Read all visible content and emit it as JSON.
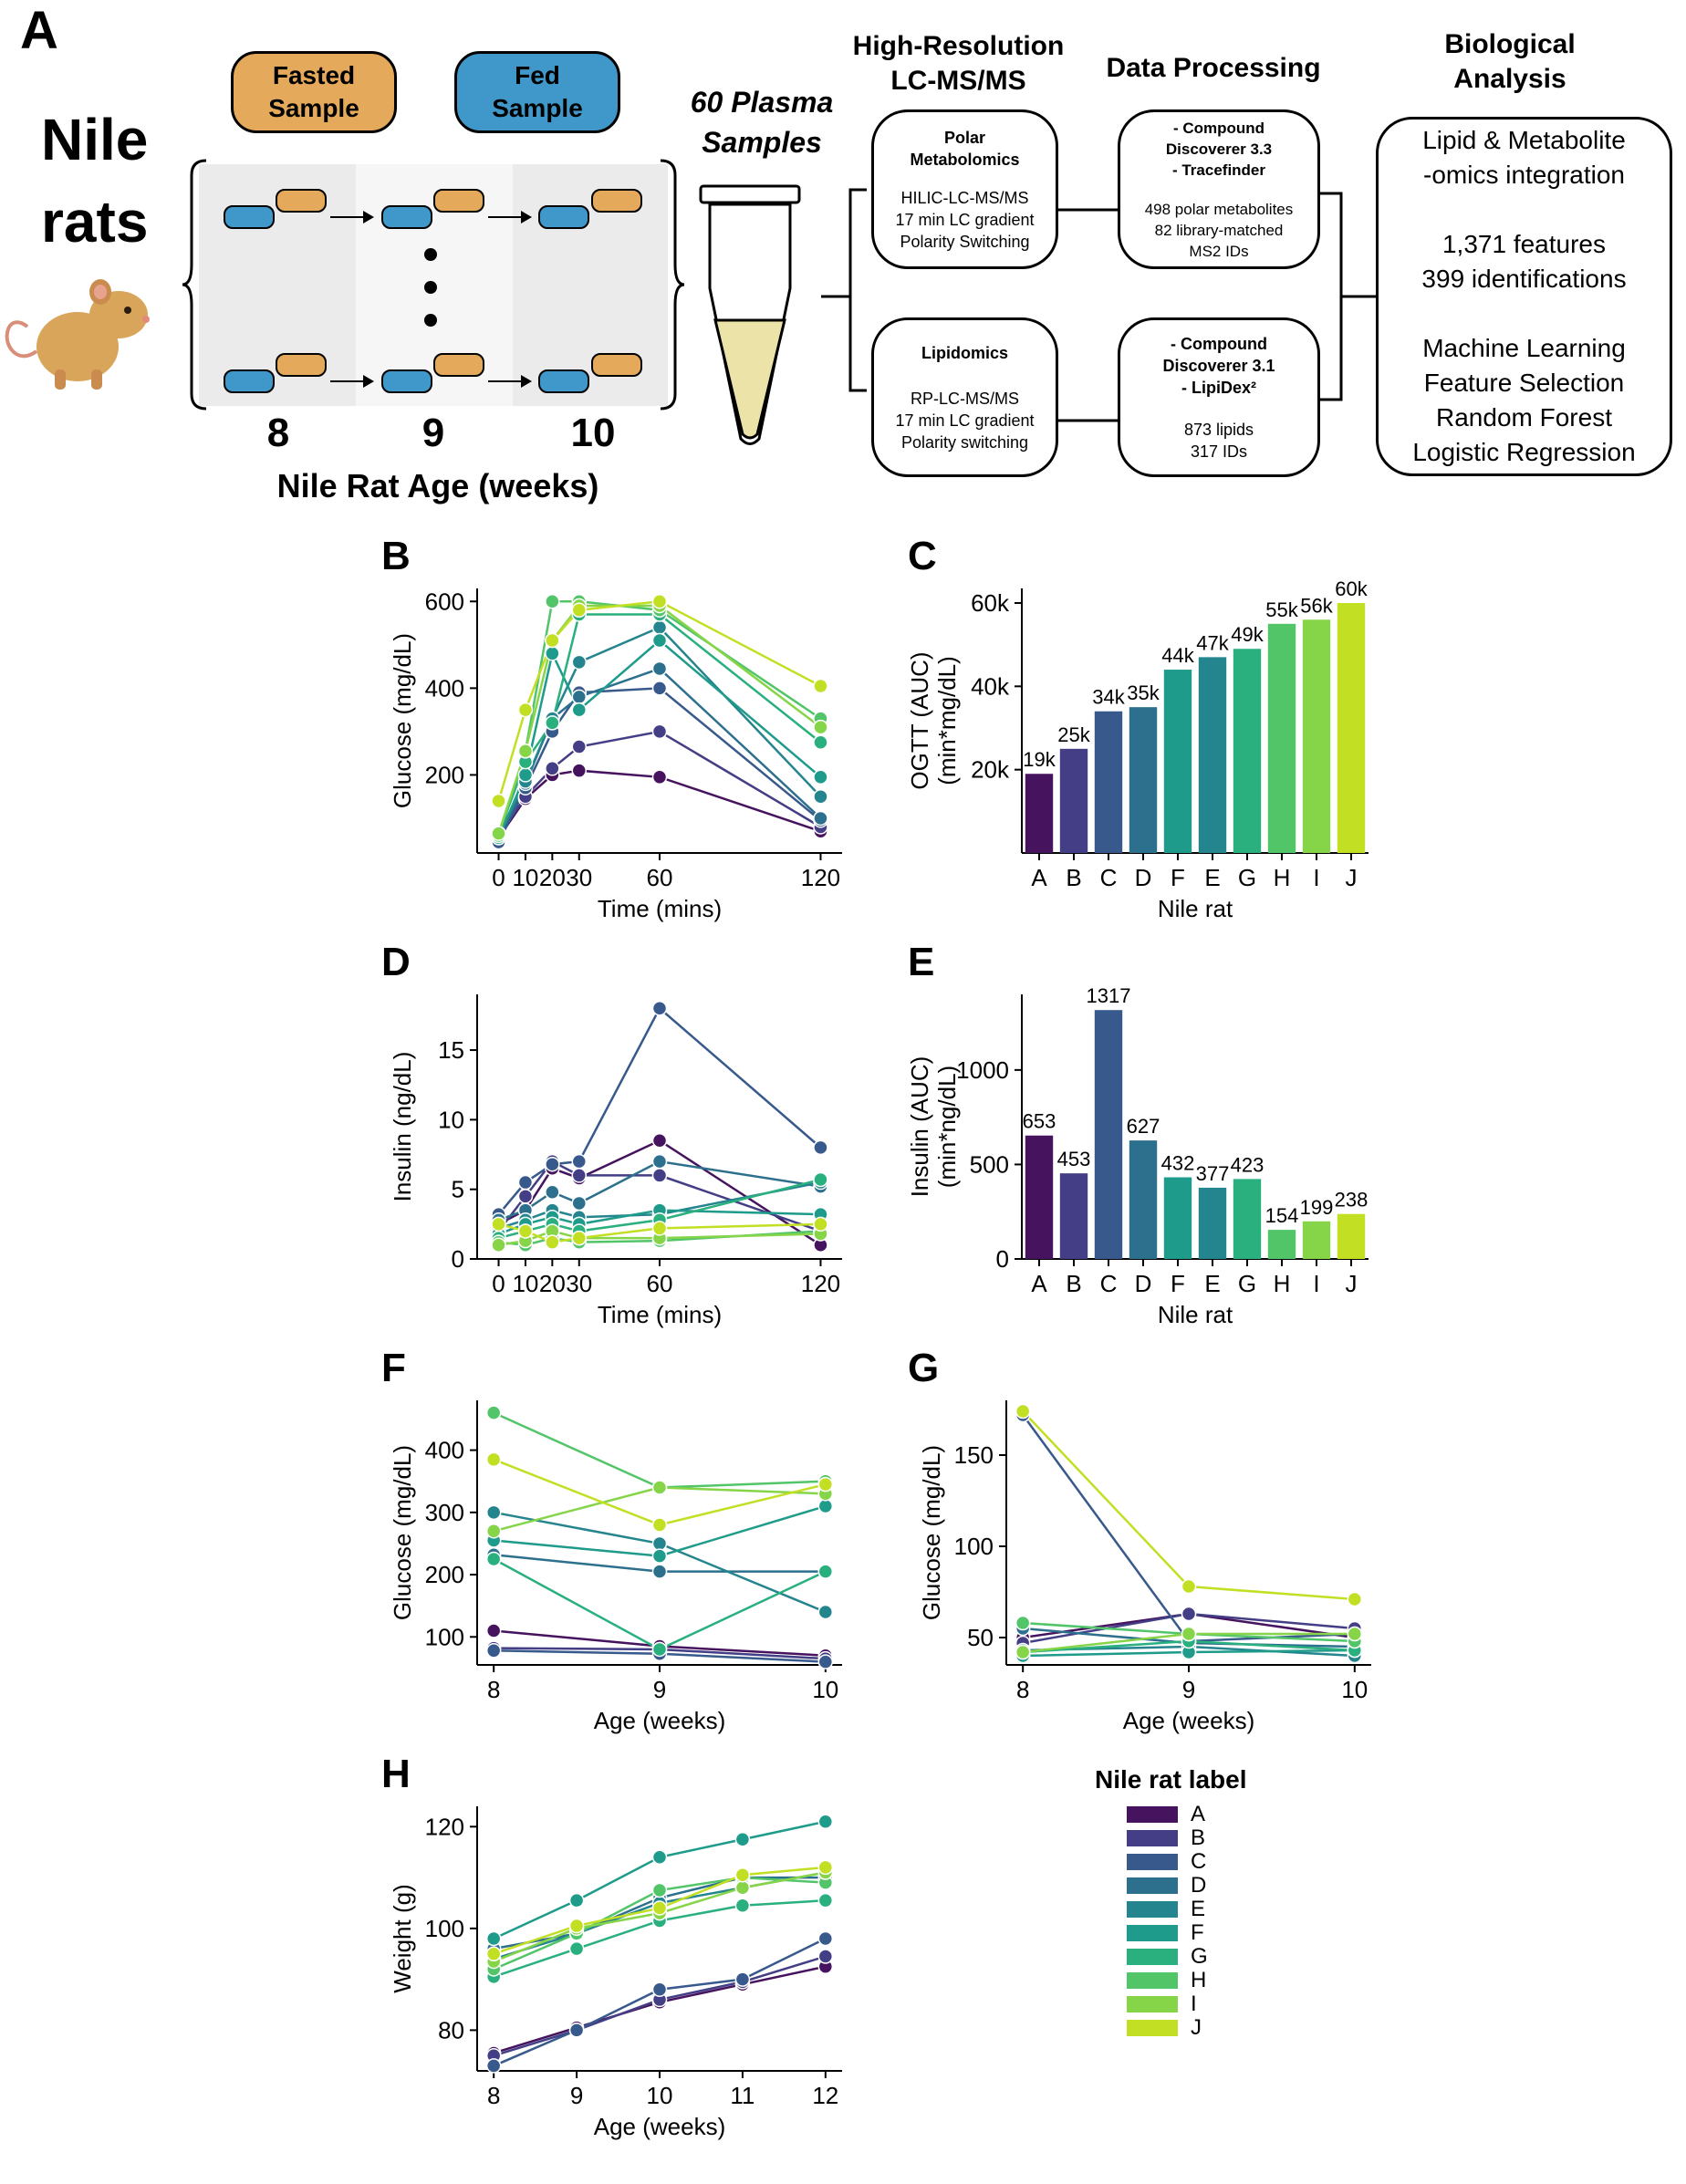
{
  "panel_a": {
    "letter": "A",
    "animal_line1": "Nile",
    "animal_line2": "rats",
    "fasted_line1": "Fasted",
    "fasted_line2": "Sample",
    "fed_line1": "Fed",
    "fed_line2": "Sample",
    "age_ticks": [
      "8",
      "9",
      "10"
    ],
    "age_axis": "Nile Rat Age (weeks)",
    "plasma_line1": "60 Plasma",
    "plasma_line2": "Samples",
    "hr_line1": "High-Resolution",
    "hr_line2": "LC-MS/MS",
    "dp_title": "Data Processing",
    "bio_line1": "Biological",
    "bio_line2": "Analysis",
    "polar_box": {
      "title1": "Polar",
      "title2": "Metabolomics",
      "l1": "HILIC-LC-MS/MS",
      "l2": "17 min LC gradient",
      "l3": "Polarity Switching"
    },
    "lipid_box": {
      "title": "Lipidomics",
      "l1": "RP-LC-MS/MS",
      "l2": "17 min LC gradient",
      "l3": "Polarity switching"
    },
    "cd33_box": {
      "l1": "- Compound",
      "l2": "Discoverer 3.3",
      "l3": "- Tracefinder",
      "l4": "498 polar metabolites",
      "l5": "82 library-matched",
      "l6": "MS2 IDs"
    },
    "cd31_box": {
      "l1": "- Compound",
      "l2": "Discoverer 3.1",
      "l3": "- LipiDex²",
      "l4": "873 lipids",
      "l5": "317 IDs"
    },
    "bio_box": {
      "l1": "Lipid & Metabolite",
      "l2": "-omics integration",
      "l3": "1,371 features",
      "l4": "399 identifications",
      "l5": "Machine Learning",
      "l6": "Feature Selection",
      "l7": "Random Forest",
      "l8": "Logistic Regression"
    }
  },
  "colors": {
    "A": "#46135f",
    "B": "#433e85",
    "C": "#38598c",
    "D": "#2d708e",
    "E": "#25858e",
    "F": "#1e9b8a",
    "G": "#2ab07f",
    "H": "#52c569",
    "I": "#86d549",
    "J": "#c2df23"
  },
  "legend": {
    "title": "Nile rat label",
    "labels": [
      "A",
      "B",
      "C",
      "D",
      "E",
      "F",
      "G",
      "H",
      "I",
      "J"
    ]
  },
  "chart_data": [
    {
      "panel": "B",
      "type": "line",
      "xlabel": "Time (mins)",
      "ylabel": "Glucose (mg/dL)",
      "x": [
        0,
        10,
        20,
        30,
        60,
        120
      ],
      "x_tick_labels": [
        "0",
        "10",
        "20",
        "30",
        "60",
        "120"
      ],
      "y_ticks": [
        200,
        400,
        600
      ],
      "xlim": [
        -8,
        128
      ],
      "ylim": [
        20,
        630
      ],
      "series": [
        {
          "name": "A",
          "values": [
            55,
            145,
            200,
            210,
            195,
            70
          ]
        },
        {
          "name": "B",
          "values": [
            60,
            150,
            215,
            265,
            300,
            80
          ]
        },
        {
          "name": "C",
          "values": [
            45,
            170,
            300,
            390,
            400,
            95
          ]
        },
        {
          "name": "D",
          "values": [
            55,
            180,
            330,
            380,
            445,
            100
          ]
        },
        {
          "name": "E",
          "values": [
            65,
            185,
            330,
            460,
            540,
            150
          ]
        },
        {
          "name": "F",
          "values": [
            55,
            200,
            480,
            350,
            510,
            195
          ]
        },
        {
          "name": "G",
          "values": [
            65,
            230,
            320,
            570,
            570,
            275
          ]
        },
        {
          "name": "H",
          "values": [
            60,
            255,
            600,
            600,
            580,
            330
          ]
        },
        {
          "name": "I",
          "values": [
            65,
            255,
            510,
            590,
            590,
            310
          ]
        },
        {
          "name": "J",
          "values": [
            140,
            350,
            510,
            580,
            600,
            405
          ]
        }
      ]
    },
    {
      "panel": "C",
      "type": "bar",
      "xlabel": "Nile rat",
      "ylabel_line1": "OGTT (AUC)",
      "ylabel_line2": "(min*mg/dL)",
      "categories": [
        "A",
        "B",
        "C",
        "D",
        "F",
        "E",
        "G",
        "H",
        "I",
        "J"
      ],
      "values": [
        19000,
        25000,
        34000,
        35000,
        44000,
        47000,
        49000,
        55000,
        56000,
        60000
      ],
      "data_labels": [
        "19k",
        "25k",
        "34k",
        "35k",
        "44k",
        "47k",
        "49k",
        "55k",
        "56k",
        "60k"
      ],
      "y_ticks": [
        20000,
        40000,
        60000
      ],
      "y_tick_labels": [
        "20k",
        "40k",
        "60k"
      ],
      "ylim": [
        0,
        63500
      ]
    },
    {
      "panel": "D",
      "type": "line",
      "xlabel": "Time (mins)",
      "ylabel": "Insulin (ng/dL)",
      "x": [
        0,
        10,
        20,
        30,
        60,
        120
      ],
      "x_tick_labels": [
        "0",
        "10",
        "20",
        "30",
        "60",
        "120"
      ],
      "y_ticks": [
        0,
        5,
        10,
        15
      ],
      "xlim": [
        -8,
        128
      ],
      "ylim": [
        0,
        19
      ],
      "series": [
        {
          "name": "A",
          "values": [
            2.5,
            3.5,
            6.5,
            5.8,
            8.5,
            1.0
          ]
        },
        {
          "name": "B",
          "values": [
            2.0,
            4.5,
            7.0,
            6.0,
            6.0,
            2.0
          ]
        },
        {
          "name": "C",
          "values": [
            3.2,
            5.5,
            6.8,
            7.0,
            18.0,
            8.0
          ]
        },
        {
          "name": "D",
          "values": [
            2.8,
            3.5,
            4.8,
            4.0,
            7.0,
            5.2
          ]
        },
        {
          "name": "E",
          "values": [
            2.2,
            2.8,
            3.5,
            3.0,
            3.2,
            5.5
          ]
        },
        {
          "name": "F",
          "values": [
            1.8,
            2.5,
            3.0,
            2.5,
            3.5,
            3.2
          ]
        },
        {
          "name": "G",
          "values": [
            1.5,
            2.0,
            2.5,
            2.0,
            2.8,
            5.7
          ]
        },
        {
          "name": "H",
          "values": [
            1.2,
            1.0,
            1.5,
            1.2,
            1.3,
            2.0
          ]
        },
        {
          "name": "I",
          "values": [
            1.0,
            1.3,
            2.0,
            1.5,
            1.5,
            1.8
          ]
        },
        {
          "name": "J",
          "values": [
            2.5,
            2.0,
            1.2,
            1.5,
            2.2,
            2.5
          ]
        }
      ]
    },
    {
      "panel": "E",
      "type": "bar",
      "xlabel": "Nile rat",
      "ylabel_line1": "Insulin (AUC)",
      "ylabel_line2": "(min*ng/dL)",
      "categories": [
        "A",
        "B",
        "C",
        "D",
        "F",
        "E",
        "G",
        "H",
        "I",
        "J"
      ],
      "values": [
        653,
        453,
        1317,
        627,
        432,
        377,
        423,
        154,
        199,
        238
      ],
      "data_labels": [
        "653",
        "453",
        "1317",
        "627",
        "432",
        "377",
        "423",
        "154",
        "199",
        "238"
      ],
      "y_ticks": [
        0,
        500,
        1000
      ],
      "y_tick_labels": [
        "0",
        "500",
        "1000"
      ],
      "ylim": [
        0,
        1400
      ]
    },
    {
      "panel": "F",
      "type": "line",
      "xlabel": "Age (weeks)",
      "ylabel": "Glucose (mg/dL)",
      "x": [
        8,
        9,
        10
      ],
      "x_tick_labels": [
        "8",
        "9",
        "10"
      ],
      "y_ticks": [
        100,
        200,
        300,
        400
      ],
      "xlim": [
        7.9,
        10.1
      ],
      "ylim": [
        55,
        480
      ],
      "series": [
        {
          "name": "A",
          "values": [
            110,
            85,
            70
          ]
        },
        {
          "name": "B",
          "values": [
            82,
            80,
            65
          ]
        },
        {
          "name": "C",
          "values": [
            78,
            73,
            60
          ]
        },
        {
          "name": "D",
          "values": [
            232,
            205,
            205
          ]
        },
        {
          "name": "E",
          "values": [
            300,
            250,
            140
          ]
        },
        {
          "name": "F",
          "values": [
            255,
            230,
            310
          ]
        },
        {
          "name": "G",
          "values": [
            225,
            80,
            205
          ]
        },
        {
          "name": "H",
          "values": [
            460,
            340,
            350
          ]
        },
        {
          "name": "I",
          "values": [
            270,
            340,
            330
          ]
        },
        {
          "name": "J",
          "values": [
            385,
            280,
            345
          ]
        }
      ]
    },
    {
      "panel": "G",
      "type": "line",
      "xlabel": "Age (weeks)",
      "ylabel": "Glucose (mg/dL)",
      "x": [
        8,
        9,
        10
      ],
      "x_tick_labels": [
        "8",
        "9",
        "10"
      ],
      "y_ticks": [
        50,
        100,
        150
      ],
      "xlim": [
        7.9,
        10.1
      ],
      "ylim": [
        35,
        180
      ],
      "series": [
        {
          "name": "A",
          "values": [
            50,
            63,
            50
          ]
        },
        {
          "name": "B",
          "values": [
            47,
            63,
            55
          ]
        },
        {
          "name": "C",
          "values": [
            172,
            48,
            52
          ]
        },
        {
          "name": "D",
          "values": [
            55,
            47,
            45
          ]
        },
        {
          "name": "E",
          "values": [
            43,
            45,
            40
          ]
        },
        {
          "name": "F",
          "values": [
            40,
            42,
            43
          ]
        },
        {
          "name": "G",
          "values": [
            42,
            48,
            43
          ]
        },
        {
          "name": "H",
          "values": [
            58,
            52,
            48
          ]
        },
        {
          "name": "I",
          "values": [
            42,
            52,
            52
          ]
        },
        {
          "name": "J",
          "values": [
            174,
            78,
            71
          ]
        }
      ]
    },
    {
      "panel": "H",
      "type": "line",
      "xlabel": "Age (weeks)",
      "ylabel": "Weight (g)",
      "x": [
        8,
        9,
        10,
        11,
        12
      ],
      "x_tick_labels": [
        "8",
        "9",
        "10",
        "11",
        "12"
      ],
      "y_ticks": [
        80,
        100,
        120
      ],
      "xlim": [
        7.8,
        12.2
      ],
      "ylim": [
        72,
        124
      ],
      "series": [
        {
          "name": "A",
          "values": [
            75.5,
            80.5,
            85.5,
            89,
            92.5
          ]
        },
        {
          "name": "B",
          "values": [
            75,
            80,
            86,
            89.5,
            94.5
          ]
        },
        {
          "name": "C",
          "values": [
            73,
            80,
            88,
            90,
            98
          ]
        },
        {
          "name": "D",
          "values": [
            96,
            99,
            106,
            110,
            110
          ]
        },
        {
          "name": "E",
          "values": [
            94,
            99,
            105,
            108,
            111
          ]
        },
        {
          "name": "F",
          "values": [
            98,
            105.5,
            114,
            117.5,
            121
          ]
        },
        {
          "name": "G",
          "values": [
            90.5,
            96,
            101.5,
            104.5,
            105.5
          ]
        },
        {
          "name": "H",
          "values": [
            92,
            99,
            107.5,
            110,
            109
          ]
        },
        {
          "name": "I",
          "values": [
            93.5,
            100,
            103,
            108,
            111
          ]
        },
        {
          "name": "J",
          "values": [
            95,
            100.5,
            104,
            110.5,
            112
          ]
        }
      ]
    }
  ]
}
